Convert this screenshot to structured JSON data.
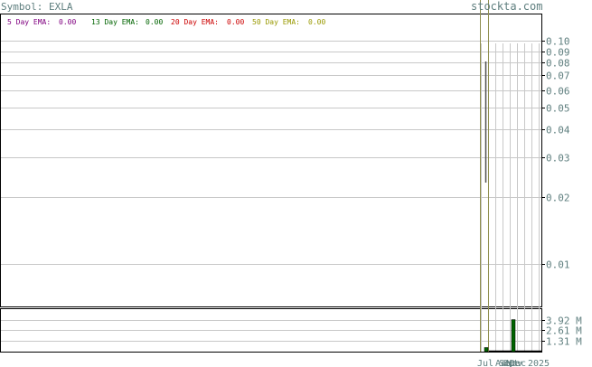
{
  "header": {
    "symbol": "Symbol: EXLA",
    "watermark": "stockta.com"
  },
  "legend": [
    {
      "label": "5 Day EMA:",
      "value": "0.00",
      "color": "#800080"
    },
    {
      "label": "13 Day EMA:",
      "value": "0.00",
      "color": "#006400"
    },
    {
      "label": "20 Day EMA:",
      "value": "0.00",
      "color": "#cc0000"
    },
    {
      "label": "50 Day EMA:",
      "value": "0.00",
      "color": "#999900"
    }
  ],
  "colors": {
    "axis_text": "#5f7f7f",
    "grid": "#c8c8c8",
    "frame": "#000000",
    "price_line": "#8f8f4f",
    "volume_bar": "#006400"
  },
  "chart_data": [
    {
      "type": "line",
      "title": "",
      "yscale": "log",
      "ylim": [
        0.007,
        0.105
      ],
      "yticks": [
        0.1,
        0.09,
        0.08,
        0.07,
        0.06,
        0.05,
        0.04,
        0.03,
        0.02,
        0.01
      ],
      "ytick_labels": [
        "0.10",
        "0.09",
        "0.08",
        "0.07",
        "0.06",
        "0.05",
        "0.04",
        "0.03",
        "0.02",
        "0.01"
      ],
      "xtick_labels": [
        "Jul",
        "Aug",
        "Sep",
        "Oct",
        "Nov",
        "Dec",
        "2025"
      ],
      "grid": true,
      "series": [
        {
          "name": "5 Day EMA",
          "value": 0.0
        },
        {
          "name": "13 Day EMA",
          "value": 0.0
        },
        {
          "name": "20 Day EMA",
          "value": 0.0
        },
        {
          "name": "50 Day EMA",
          "value": 0.0
        }
      ]
    },
    {
      "type": "bar",
      "title": "",
      "ylim": [
        0,
        5.2
      ],
      "yticks": [
        3.92,
        2.61,
        1.31
      ],
      "ytick_labels": [
        "3.92 M",
        "2.61 M",
        "1.31 M"
      ],
      "bars": [
        {
          "label": "Jul",
          "value": 0.5
        },
        {
          "label": "Nov",
          "value": 3.92
        }
      ]
    }
  ]
}
